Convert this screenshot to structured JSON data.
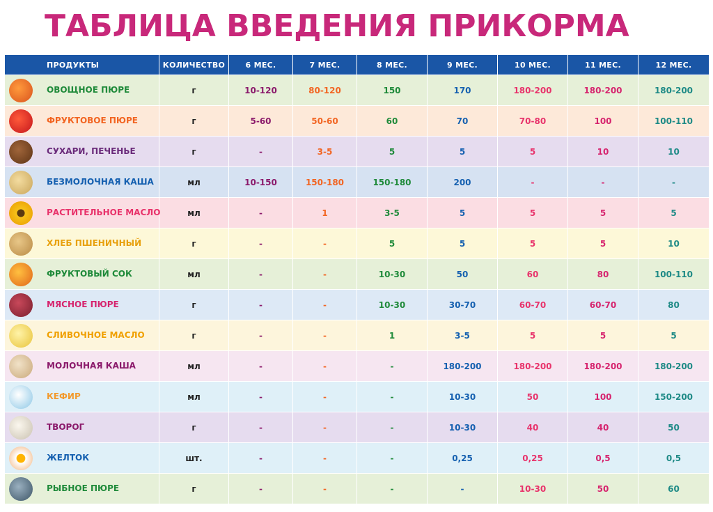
{
  "title": "ТАБЛИЦА ВВЕДЕНИЯ ПРИКОРМА",
  "colors": {
    "title": "#c8287a",
    "header_bg": "#1a56a6",
    "col6": "#8b1a6b",
    "col7": "#f26522",
    "col8": "#1f8a3a",
    "col9": "#1560b0",
    "col10": "#e8336b",
    "col11": "#d6246e",
    "col12": "#1e8a86"
  },
  "header": {
    "products": "ПРОДУКТЫ",
    "quantity": "КОЛИЧЕСТВО",
    "months": [
      "6 МЕС.",
      "7 МЕС.",
      "8 МЕС.",
      "9 МЕС.",
      "10 МЕС.",
      "11 МЕС.",
      "12 МЕС."
    ]
  },
  "rows": [
    {
      "name": "ОВОЩНОЕ ПЮРЕ",
      "icon": "vegetable-puree-icon",
      "name_color": "#1f8a3a",
      "bg": "#e6f0d8",
      "unit": "г",
      "values": [
        "10-120",
        "80-120",
        "150",
        "170",
        "180-200",
        "180-200",
        "180-200"
      ]
    },
    {
      "name": "ФРУКТОВОЕ ПЮРЕ",
      "icon": "fruit-puree-icon",
      "name_color": "#f26522",
      "bg": "#fde9d9",
      "unit": "г",
      "values": [
        "5-60",
        "50-60",
        "60",
        "70",
        "70-80",
        "100",
        "100-110"
      ]
    },
    {
      "name": "СУХАРИ, ПЕЧЕНЬЕ",
      "icon": "crackers-icon",
      "name_color": "#6a2a7a",
      "bg": "#e6dcef",
      "unit": "г",
      "values": [
        "-",
        "3-5",
        "5",
        "5",
        "5",
        "10",
        "10"
      ]
    },
    {
      "name": "БЕЗМОЛОЧНАЯ КАША",
      "icon": "porridge-icon",
      "name_color": "#1560b0",
      "bg": "#d6e2f2",
      "unit": "мл",
      "values": [
        "10-150",
        "150-180",
        "150-180",
        "200",
        "-",
        "-",
        "-"
      ]
    },
    {
      "name": "РАСТИТЕЛЬНОЕ МАСЛО",
      "icon": "sunflower-oil-icon",
      "name_color": "#e8336b",
      "bg": "#fbdde3",
      "unit": "мл",
      "values": [
        "-",
        "1",
        "3-5",
        "5",
        "5",
        "5",
        "5"
      ]
    },
    {
      "name": "ХЛЕБ ПШЕНИЧНЫЙ",
      "icon": "bread-icon",
      "name_color": "#e8a10f",
      "bg": "#fdf8d8",
      "unit": "г",
      "values": [
        "-",
        "-",
        "5",
        "5",
        "5",
        "5",
        "10"
      ]
    },
    {
      "name": "ФРУКТОВЫЙ СОК",
      "icon": "juice-icon",
      "name_color": "#1f8a3a",
      "bg": "#e6f0d8",
      "unit": "мл",
      "values": [
        "-",
        "-",
        "10-30",
        "50",
        "60",
        "80",
        "100-110"
      ]
    },
    {
      "name": "МЯСНОЕ ПЮРЕ",
      "icon": "meat-puree-icon",
      "name_color": "#d6246e",
      "bg": "#dde9f6",
      "unit": "г",
      "values": [
        "-",
        "-",
        "10-30",
        "30-70",
        "60-70",
        "60-70",
        "80"
      ]
    },
    {
      "name": "СЛИВОЧНОЕ МАСЛО",
      "icon": "butter-icon",
      "name_color": "#f0a000",
      "bg": "#fdf5dc",
      "unit": "г",
      "values": [
        "-",
        "-",
        "1",
        "3-5",
        "5",
        "5",
        "5"
      ]
    },
    {
      "name": "МОЛОЧНАЯ КАША",
      "icon": "milk-porridge-icon",
      "name_color": "#8b1a6b",
      "bg": "#f6e6f1",
      "unit": "мл",
      "values": [
        "-",
        "-",
        "-",
        "180-200",
        "180-200",
        "180-200",
        "180-200"
      ]
    },
    {
      "name": "КЕФИР",
      "icon": "kefir-icon",
      "name_color": "#f29a2e",
      "bg": "#dff0f8",
      "unit": "мл",
      "values": [
        "-",
        "-",
        "-",
        "10-30",
        "50",
        "100",
        "150-200"
      ]
    },
    {
      "name": "ТВОРОГ",
      "icon": "cottage-cheese-icon",
      "name_color": "#8b1a6b",
      "bg": "#e6dcef",
      "unit": "г",
      "values": [
        "-",
        "-",
        "-",
        "10-30",
        "40",
        "40",
        "50"
      ]
    },
    {
      "name": "ЖЕЛТОК",
      "icon": "egg-yolk-icon",
      "name_color": "#1560b0",
      "bg": "#dff0f8",
      "unit": "шт.",
      "values": [
        "-",
        "-",
        "-",
        "0,25",
        "0,25",
        "0,5",
        "0,5"
      ]
    },
    {
      "name": "РЫБНОЕ ПЮРЕ",
      "icon": "fish-puree-icon",
      "name_color": "#1f8a3a",
      "bg": "#e6f0d8",
      "unit": "г",
      "values": [
        "-",
        "-",
        "-",
        "-",
        "10-30",
        "50",
        "60"
      ]
    }
  ]
}
